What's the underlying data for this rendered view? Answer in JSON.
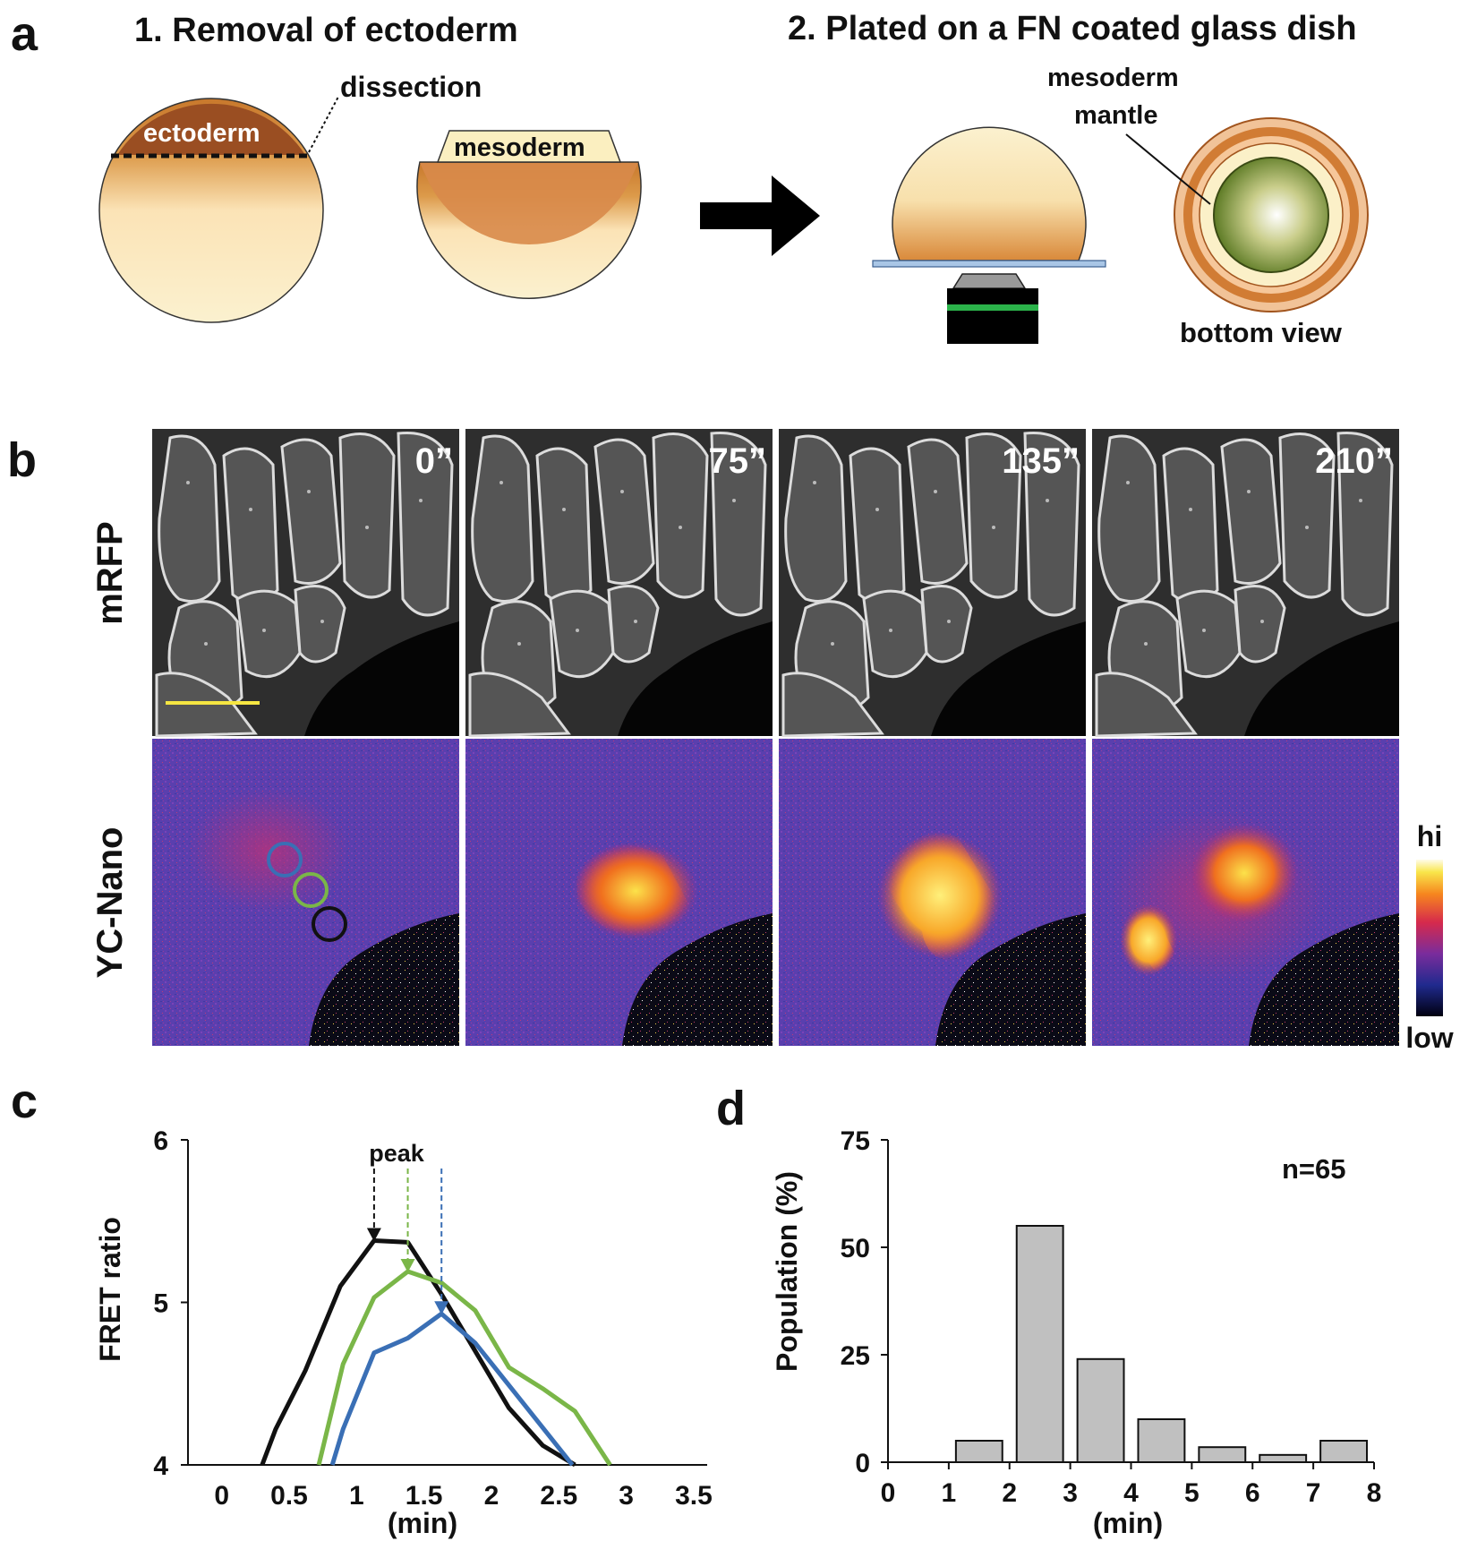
{
  "panel_a": {
    "letter": "a",
    "step1_title": "1. Removal of ectoderm",
    "step2_title": "2. Plated on a FN coated glass dish",
    "dissection_label": "dissection",
    "ectoderm_label": "ectoderm",
    "mesoderm_label": "mesoderm",
    "mesoderm_mantle_label_line1": "mesoderm",
    "mesoderm_mantle_label_line2": "mantle",
    "bottom_view_label": "bottom view"
  },
  "panel_b": {
    "letter": "b",
    "row_labels": [
      "mRFP",
      "YC-Nano"
    ],
    "timepoints": [
      "0”",
      "75”",
      "135”",
      "210”"
    ],
    "colorbar_hi": "hi",
    "colorbar_low": "low",
    "roi_colors": [
      "#3a6fb5",
      "#7ab648",
      "#111111"
    ],
    "scale_bar_color": "#f5e642"
  },
  "panel_c": {
    "letter": "c",
    "peak_label": "peak",
    "chart_data": {
      "type": "line",
      "xlabel": "(min)",
      "ylabel": "FRET ratio",
      "xlim": [
        -0.25,
        3.6
      ],
      "ylim": [
        4,
        6
      ],
      "xticks": [
        "0",
        "0.5",
        "1",
        "1.5",
        "2",
        "2.5",
        "3",
        "3.5"
      ],
      "yticks": [
        "4",
        "5",
        "6"
      ],
      "series": [
        {
          "color": "#111111",
          "x": [
            0.3,
            0.4,
            0.62,
            0.88,
            1.13,
            1.38,
            1.63,
            1.88,
            2.13,
            2.38,
            2.62
          ],
          "y": [
            4.0,
            4.22,
            4.58,
            5.1,
            5.38,
            5.37,
            5.05,
            4.7,
            4.35,
            4.12,
            4.0
          ],
          "peak_x": 1.13
        },
        {
          "color": "#7ab648",
          "x": [
            0.72,
            0.9,
            1.13,
            1.38,
            1.63,
            1.88,
            2.13,
            2.38,
            2.62,
            2.88
          ],
          "y": [
            4.0,
            4.62,
            5.03,
            5.19,
            5.12,
            4.95,
            4.6,
            4.47,
            4.33,
            4.0
          ],
          "peak_x": 1.38
        },
        {
          "color": "#3a6fb5",
          "x": [
            0.82,
            0.9,
            1.13,
            1.38,
            1.63,
            1.88,
            2.13,
            2.38,
            2.6
          ],
          "y": [
            4.0,
            4.22,
            4.69,
            4.78,
            4.93,
            4.75,
            4.49,
            4.23,
            4.0
          ],
          "peak_x": 1.63
        }
      ]
    }
  },
  "panel_d": {
    "letter": "d",
    "n_label": "n=65",
    "chart_data": {
      "type": "bar",
      "xlabel": "(min)",
      "ylabel": "Population (%)",
      "xlim": [
        0,
        8
      ],
      "ylim": [
        0,
        75
      ],
      "xticks": [
        "0",
        "1",
        "2",
        "3",
        "4",
        "5",
        "6",
        "7",
        "8"
      ],
      "yticks": [
        "0",
        "25",
        "50",
        "75"
      ],
      "bins": [
        [
          1,
          2
        ],
        [
          2,
          3
        ],
        [
          3,
          4
        ],
        [
          4,
          5
        ],
        [
          5,
          6
        ],
        [
          6,
          7
        ],
        [
          7,
          8
        ]
      ],
      "values": [
        5,
        55,
        24,
        10,
        3.5,
        1.7,
        5
      ],
      "bar_color": "#c0c0c0"
    }
  }
}
